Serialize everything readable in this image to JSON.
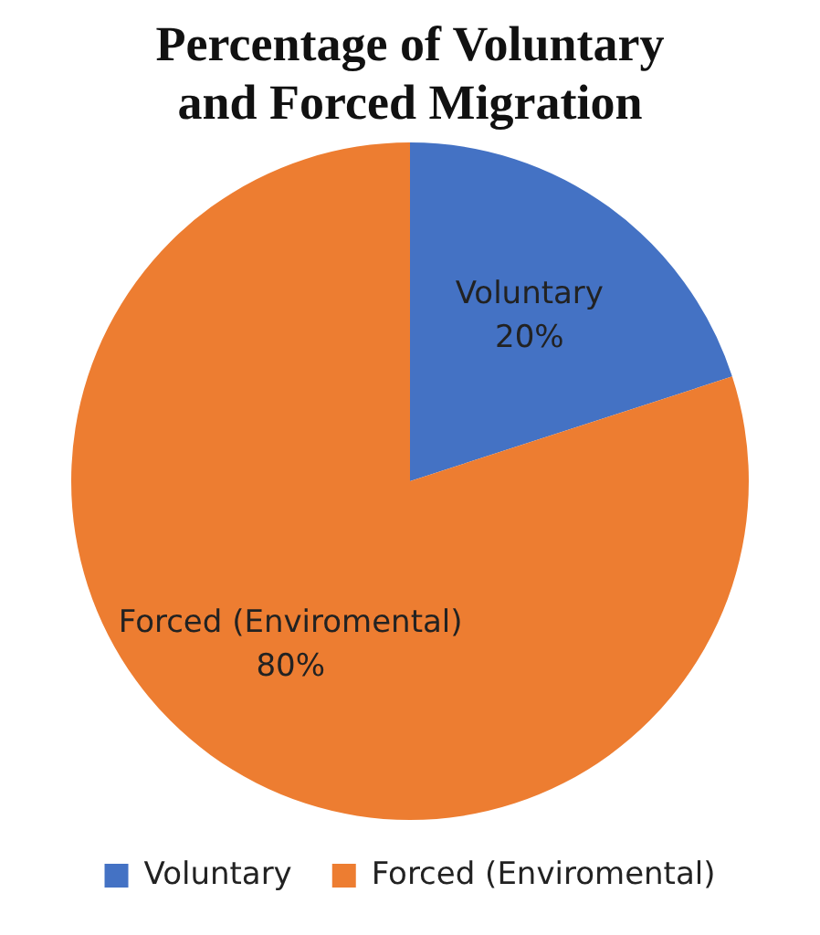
{
  "chart_data": {
    "type": "pie",
    "title": "Percentage of Voluntary and Forced Migration",
    "categories": [
      "Voluntary",
      "Forced (Enviromental)"
    ],
    "values": [
      20,
      80
    ],
    "colors": [
      "#4472c4",
      "#ed7d31"
    ],
    "value_labels": [
      "20%",
      "80%"
    ],
    "legend": "bottom"
  }
}
